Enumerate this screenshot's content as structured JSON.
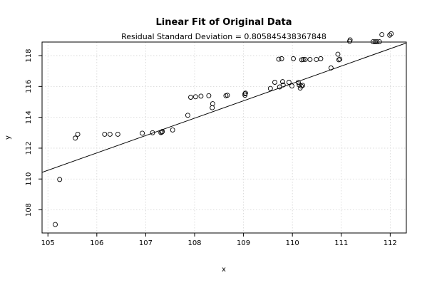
{
  "chart_data": {
    "type": "scatter",
    "title": "Linear Fit of Original Data",
    "subtitle": "Residual Standard Deviation =  0.805845438367848",
    "xlabel": "x",
    "ylabel": "y",
    "xlim": [
      104.88,
      112.33
    ],
    "ylim": [
      106.5,
      118.88
    ],
    "xticks": [
      105,
      106,
      107,
      108,
      109,
      110,
      111,
      112
    ],
    "yticks": [
      108,
      110,
      112,
      114,
      116,
      118
    ],
    "xtick_labels": [
      "105",
      "106",
      "107",
      "108",
      "109",
      "110",
      "111",
      "112"
    ],
    "ytick_labels": [
      "108",
      "110",
      "112",
      "114",
      "116",
      "118"
    ],
    "grid": true,
    "fit_line": {
      "x1": 104.88,
      "y1": 110.43,
      "x2": 112.33,
      "y2": 118.82
    },
    "points": [
      [
        105.15,
        107.05
      ],
      [
        105.24,
        109.97
      ],
      [
        105.56,
        112.65
      ],
      [
        105.61,
        112.9
      ],
      [
        106.16,
        112.9
      ],
      [
        106.27,
        112.9
      ],
      [
        106.43,
        112.9
      ],
      [
        106.93,
        112.97
      ],
      [
        107.14,
        113.0
      ],
      [
        107.31,
        113.01
      ],
      [
        107.33,
        113.04
      ],
      [
        107.34,
        113.08
      ],
      [
        107.55,
        113.18
      ],
      [
        107.86,
        114.13
      ],
      [
        107.92,
        115.3
      ],
      [
        108.02,
        115.33
      ],
      [
        108.13,
        115.37
      ],
      [
        108.29,
        115.4
      ],
      [
        108.36,
        114.62
      ],
      [
        108.37,
        114.88
      ],
      [
        108.64,
        115.4
      ],
      [
        108.67,
        115.43
      ],
      [
        109.03,
        115.43
      ],
      [
        109.03,
        115.52
      ],
      [
        109.04,
        115.57
      ],
      [
        109.55,
        115.87
      ],
      [
        109.64,
        116.27
      ],
      [
        109.72,
        117.77
      ],
      [
        109.74,
        115.97
      ],
      [
        109.78,
        117.8
      ],
      [
        109.8,
        116.31
      ],
      [
        109.81,
        116.1
      ],
      [
        109.93,
        116.27
      ],
      [
        109.99,
        116.03
      ],
      [
        110.02,
        117.8
      ],
      [
        110.12,
        116.26
      ],
      [
        110.14,
        116.1
      ],
      [
        110.16,
        115.9
      ],
      [
        110.18,
        116.03
      ],
      [
        110.19,
        117.73
      ],
      [
        110.21,
        116.07
      ],
      [
        110.22,
        117.75
      ],
      [
        110.26,
        117.75
      ],
      [
        110.36,
        117.75
      ],
      [
        110.49,
        117.75
      ],
      [
        110.58,
        117.8
      ],
      [
        110.79,
        117.2
      ],
      [
        110.93,
        118.09
      ],
      [
        110.95,
        117.73
      ],
      [
        110.97,
        117.77
      ],
      [
        111.17,
        118.93
      ],
      [
        111.18,
        119.02
      ],
      [
        111.65,
        118.9
      ],
      [
        111.69,
        118.9
      ],
      [
        111.73,
        118.9
      ],
      [
        111.78,
        118.9
      ],
      [
        111.83,
        119.36
      ],
      [
        111.99,
        119.33
      ],
      [
        112.02,
        119.42
      ]
    ]
  }
}
